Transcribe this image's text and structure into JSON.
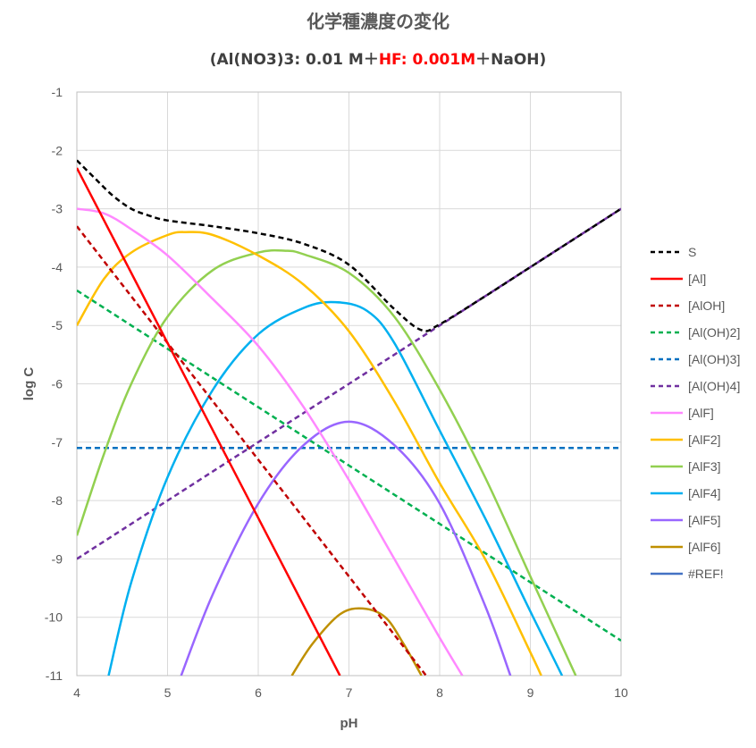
{
  "title": "化学種濃度の変化",
  "subtitle": {
    "part1": "(Al(NO3)3: 0.01 M＋",
    "part2": "HF: 0.001M",
    "part3": "＋NaOH)"
  },
  "chart_data": {
    "type": "line",
    "xlabel": "pH",
    "ylabel": "log C",
    "xlim": [
      4,
      10
    ],
    "ylim": [
      -11,
      -1
    ],
    "x_ticks": [
      "4",
      "5",
      "6",
      "7",
      "8",
      "9",
      "10"
    ],
    "y_ticks": [
      "-1",
      "-2",
      "-3",
      "-4",
      "-5",
      "-6",
      "-7",
      "-8",
      "-9",
      "-10",
      "-11"
    ],
    "grid": true,
    "legend_position": "right",
    "series": [
      {
        "name": "S",
        "color": "#000000",
        "dash": true,
        "x": [
          4.0,
          4.2,
          4.4,
          4.6,
          4.8,
          5.0,
          5.5,
          6.0,
          6.5,
          7.0,
          7.5,
          7.8,
          8.0,
          8.5,
          9.0,
          10.0
        ],
        "y": [
          -2.17,
          -2.48,
          -2.78,
          -3.0,
          -3.12,
          -3.2,
          -3.3,
          -3.42,
          -3.6,
          -3.96,
          -4.72,
          -5.08,
          -4.98,
          -4.5,
          -4.0,
          -3.0
        ]
      },
      {
        "name": "[Al]",
        "color": "#ff0000",
        "dash": false,
        "x": [
          4.0,
          6.9
        ],
        "y": [
          -2.3,
          -11.0
        ]
      },
      {
        "name": "[AlOH]",
        "color": "#c00000",
        "dash": true,
        "x": [
          4.0,
          7.85
        ],
        "y": [
          -3.3,
          -11.0
        ]
      },
      {
        "name": "[Al(OH)2]",
        "color": "#00b050",
        "dash": true,
        "x": [
          4.0,
          10.0
        ],
        "y": [
          -4.4,
          -10.4
        ]
      },
      {
        "name": "[Al(OH)3]",
        "color": "#0070c0",
        "dash": true,
        "x": [
          4.0,
          10.0
        ],
        "y": [
          -7.1,
          -7.1
        ]
      },
      {
        "name": "[Al(OH)4]",
        "color": "#7030a0",
        "dash": true,
        "x": [
          4.0,
          10.0
        ],
        "y": [
          -9.0,
          -3.0
        ]
      },
      {
        "name": "[AlF]",
        "color": "#ff88ff",
        "dash": false,
        "x": [
          4.0,
          4.3,
          4.6,
          5.0,
          5.5,
          6.0,
          6.5,
          7.0,
          7.5,
          8.0,
          8.25
        ],
        "y": [
          -3.0,
          -3.08,
          -3.35,
          -3.8,
          -4.55,
          -5.35,
          -6.4,
          -7.65,
          -9.0,
          -10.35,
          -11.0
        ]
      },
      {
        "name": "[AlF2]",
        "color": "#ffc000",
        "dash": false,
        "x": [
          4.0,
          4.3,
          4.6,
          5.0,
          5.2,
          5.5,
          6.0,
          6.5,
          7.0,
          7.5,
          8.0,
          8.5,
          9.0,
          9.12
        ],
        "y": [
          -5.0,
          -4.2,
          -3.75,
          -3.45,
          -3.4,
          -3.45,
          -3.8,
          -4.3,
          -5.1,
          -6.3,
          -7.7,
          -9.0,
          -10.6,
          -11.0
        ]
      },
      {
        "name": "[AlF3]",
        "color": "#92d050",
        "dash": false,
        "x": [
          4.0,
          4.3,
          4.6,
          5.0,
          5.5,
          6.0,
          6.3,
          6.5,
          7.0,
          7.5,
          8.0,
          8.5,
          9.0,
          9.5
        ],
        "y": [
          -8.6,
          -7.2,
          -6.0,
          -4.85,
          -4.05,
          -3.75,
          -3.72,
          -3.78,
          -4.1,
          -4.85,
          -6.1,
          -7.6,
          -9.3,
          -11.0
        ]
      },
      {
        "name": "[AlF4]",
        "color": "#00b0f0",
        "dash": false,
        "x": [
          4.35,
          4.6,
          5.0,
          5.5,
          6.0,
          6.5,
          6.85,
          7.2,
          7.5,
          8.0,
          8.5,
          9.0,
          9.35
        ],
        "y": [
          -11.0,
          -9.4,
          -7.6,
          -6.1,
          -5.15,
          -4.7,
          -4.6,
          -4.75,
          -5.3,
          -6.8,
          -8.3,
          -9.9,
          -11.0
        ]
      },
      {
        "name": "[AlF5]",
        "color": "#9966ff",
        "dash": false,
        "x": [
          5.15,
          5.5,
          6.0,
          6.5,
          7.0,
          7.5,
          8.0,
          8.5,
          8.78
        ],
        "y": [
          -11.0,
          -9.6,
          -8.05,
          -7.05,
          -6.65,
          -7.05,
          -8.05,
          -9.8,
          -11.0
        ]
      },
      {
        "name": "[AlF6]",
        "color": "#bf9000",
        "dash": false,
        "x": [
          6.37,
          6.6,
          6.9,
          7.15,
          7.4,
          7.6,
          7.8
        ],
        "y": [
          -11.0,
          -10.45,
          -9.95,
          -9.85,
          -10.0,
          -10.45,
          -11.0
        ]
      },
      {
        "name": "#REF!",
        "color": "#4472c4",
        "dash": false,
        "x": [],
        "y": []
      }
    ]
  }
}
